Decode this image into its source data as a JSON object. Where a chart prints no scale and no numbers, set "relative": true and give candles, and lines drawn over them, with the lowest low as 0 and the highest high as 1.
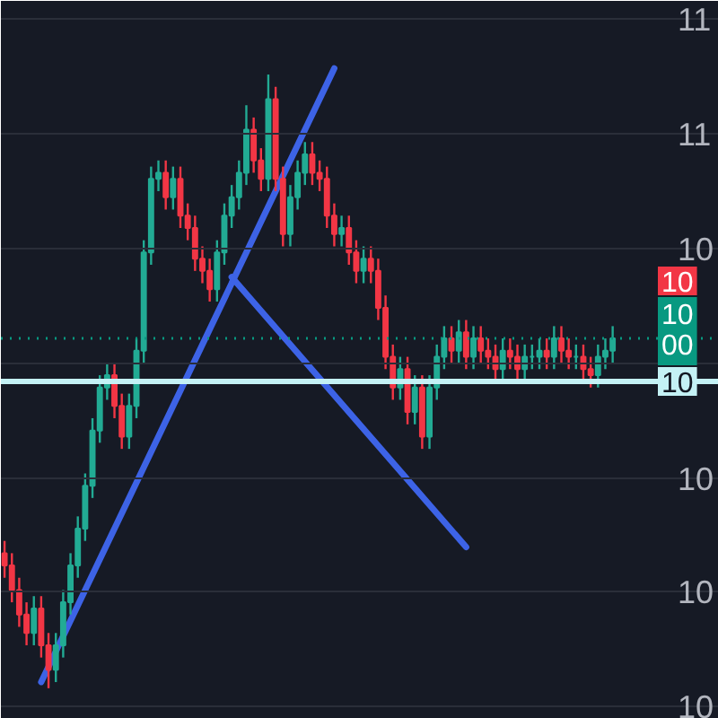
{
  "chart_data": {
    "type": "candlestick",
    "relative": true,
    "categories": [
      null,
      null,
      null,
      null,
      null,
      null,
      null,
      null,
      null,
      null,
      null,
      null,
      null,
      null,
      null,
      null,
      null,
      null,
      null,
      null,
      null,
      null,
      null,
      null,
      null,
      null,
      null,
      null,
      null,
      null,
      null,
      null,
      null,
      null,
      null,
      null,
      null,
      null,
      null,
      null,
      null,
      null,
      null,
      null,
      null,
      null,
      null,
      null,
      null,
      null,
      null,
      null,
      null,
      null,
      null,
      null,
      null,
      null,
      null,
      null,
      null,
      null,
      null,
      null,
      null,
      null,
      null,
      null,
      null,
      null,
      null,
      null,
      null,
      null,
      null,
      null,
      null,
      null,
      null,
      null,
      null,
      null,
      null,
      null
    ],
    "ohlc": [
      [
        0.22,
        0.24,
        0.18,
        0.2
      ],
      [
        0.2,
        0.22,
        0.14,
        0.16
      ],
      [
        0.16,
        0.18,
        0.1,
        0.12
      ],
      [
        0.12,
        0.14,
        0.07,
        0.09
      ],
      [
        0.09,
        0.15,
        0.07,
        0.13
      ],
      [
        0.13,
        0.15,
        0.05,
        0.07
      ],
      [
        0.07,
        0.09,
        0.0,
        0.03
      ],
      [
        0.03,
        0.09,
        0.01,
        0.07
      ],
      [
        0.07,
        0.16,
        0.05,
        0.14
      ],
      [
        0.14,
        0.22,
        0.12,
        0.2
      ],
      [
        0.2,
        0.28,
        0.18,
        0.26
      ],
      [
        0.26,
        0.35,
        0.24,
        0.33
      ],
      [
        0.33,
        0.44,
        0.31,
        0.42
      ],
      [
        0.42,
        0.51,
        0.4,
        0.49
      ],
      [
        0.49,
        0.53,
        0.47,
        0.51
      ],
      [
        0.51,
        0.53,
        0.44,
        0.46
      ],
      [
        0.46,
        0.48,
        0.39,
        0.41
      ],
      [
        0.41,
        0.48,
        0.39,
        0.46
      ],
      [
        0.46,
        0.57,
        0.44,
        0.55
      ],
      [
        0.55,
        0.73,
        0.53,
        0.71
      ],
      [
        0.71,
        0.85,
        0.69,
        0.83
      ],
      [
        0.83,
        0.86,
        0.81,
        0.84
      ],
      [
        0.84,
        0.86,
        0.78,
        0.8
      ],
      [
        0.8,
        0.85,
        0.78,
        0.83
      ],
      [
        0.83,
        0.85,
        0.75,
        0.77
      ],
      [
        0.77,
        0.79,
        0.73,
        0.75
      ],
      [
        0.75,
        0.77,
        0.68,
        0.7
      ],
      [
        0.7,
        0.72,
        0.66,
        0.68
      ],
      [
        0.68,
        0.7,
        0.63,
        0.65
      ],
      [
        0.65,
        0.73,
        0.63,
        0.71
      ],
      [
        0.71,
        0.79,
        0.69,
        0.77
      ],
      [
        0.77,
        0.82,
        0.75,
        0.8
      ],
      [
        0.8,
        0.86,
        0.78,
        0.84
      ],
      [
        0.84,
        0.95,
        0.82,
        0.91
      ],
      [
        0.91,
        0.93,
        0.84,
        0.86
      ],
      [
        0.86,
        0.88,
        0.81,
        0.83
      ],
      [
        0.83,
        1.0,
        0.81,
        0.96
      ],
      [
        0.96,
        0.98,
        0.81,
        0.83
      ],
      [
        0.83,
        0.85,
        0.72,
        0.74
      ],
      [
        0.74,
        0.82,
        0.72,
        0.8
      ],
      [
        0.8,
        0.86,
        0.78,
        0.84
      ],
      [
        0.84,
        0.89,
        0.82,
        0.87
      ],
      [
        0.87,
        0.89,
        0.82,
        0.84
      ],
      [
        0.84,
        0.86,
        0.81,
        0.83
      ],
      [
        0.83,
        0.85,
        0.75,
        0.77
      ],
      [
        0.77,
        0.79,
        0.72,
        0.74
      ],
      [
        0.74,
        0.77,
        0.72,
        0.75
      ],
      [
        0.75,
        0.77,
        0.69,
        0.71
      ],
      [
        0.71,
        0.73,
        0.66,
        0.68
      ],
      [
        0.68,
        0.72,
        0.66,
        0.7
      ],
      [
        0.7,
        0.72,
        0.66,
        0.68
      ],
      [
        0.68,
        0.7,
        0.6,
        0.62
      ],
      [
        0.62,
        0.64,
        0.52,
        0.54
      ],
      [
        0.54,
        0.56,
        0.47,
        0.49
      ],
      [
        0.49,
        0.54,
        0.47,
        0.52
      ],
      [
        0.52,
        0.54,
        0.43,
        0.45
      ],
      [
        0.45,
        0.51,
        0.43,
        0.49
      ],
      [
        0.49,
        0.51,
        0.39,
        0.41
      ],
      [
        0.41,
        0.51,
        0.39,
        0.49
      ],
      [
        0.49,
        0.56,
        0.47,
        0.54
      ],
      [
        0.54,
        0.59,
        0.52,
        0.57
      ],
      [
        0.57,
        0.59,
        0.53,
        0.55
      ],
      [
        0.55,
        0.6,
        0.53,
        0.58
      ],
      [
        0.58,
        0.6,
        0.52,
        0.54
      ],
      [
        0.54,
        0.59,
        0.52,
        0.57
      ],
      [
        0.57,
        0.59,
        0.53,
        0.55
      ],
      [
        0.55,
        0.57,
        0.52,
        0.54
      ],
      [
        0.54,
        0.56,
        0.5,
        0.52
      ],
      [
        0.52,
        0.57,
        0.5,
        0.55
      ],
      [
        0.55,
        0.57,
        0.52,
        0.54
      ],
      [
        0.54,
        0.56,
        0.5,
        0.52
      ],
      [
        0.52,
        0.56,
        0.5,
        0.54
      ],
      [
        0.54,
        0.56,
        0.52,
        0.54
      ],
      [
        0.54,
        0.57,
        0.52,
        0.55
      ],
      [
        0.55,
        0.57,
        0.52,
        0.54
      ],
      [
        0.54,
        0.59,
        0.52,
        0.57
      ],
      [
        0.57,
        0.59,
        0.53,
        0.55
      ],
      [
        0.55,
        0.57,
        0.52,
        0.54
      ],
      [
        0.54,
        0.56,
        0.52,
        0.54
      ],
      [
        0.54,
        0.56,
        0.5,
        0.52
      ],
      [
        0.52,
        0.54,
        0.49,
        0.51
      ],
      [
        0.51,
        0.56,
        0.49,
        0.54
      ],
      [
        0.54,
        0.57,
        0.52,
        0.55
      ],
      [
        0.55,
        0.59,
        0.53,
        0.57
      ]
    ],
    "colors": [
      "#f23645",
      "#f23645",
      "#f23645",
      "#f23645",
      "#22ab94",
      "#f23645",
      "#f23645",
      "#22ab94",
      "#22ab94",
      "#22ab94",
      "#22ab94",
      "#22ab94",
      "#22ab94",
      "#22ab94",
      "#22ab94",
      "#f23645",
      "#f23645",
      "#22ab94",
      "#22ab94",
      "#22ab94",
      "#22ab94",
      "#22ab94",
      "#f23645",
      "#22ab94",
      "#f23645",
      "#f23645",
      "#f23645",
      "#f23645",
      "#f23645",
      "#22ab94",
      "#22ab94",
      "#22ab94",
      "#22ab94",
      "#22ab94",
      "#f23645",
      "#f23645",
      "#22ab94",
      "#f23645",
      "#f23645",
      "#22ab94",
      "#22ab94",
      "#22ab94",
      "#f23645",
      "#f23645",
      "#f23645",
      "#f23645",
      "#22ab94",
      "#f23645",
      "#f23645",
      "#22ab94",
      "#f23645",
      "#f23645",
      "#f23645",
      "#f23645",
      "#22ab94",
      "#f23645",
      "#22ab94",
      "#f23645",
      "#22ab94",
      "#22ab94",
      "#22ab94",
      "#f23645",
      "#22ab94",
      "#f23645",
      "#22ab94",
      "#f23645",
      "#f23645",
      "#f23645",
      "#22ab94",
      "#f23645",
      "#f23645",
      "#22ab94",
      "#22ab94",
      "#22ab94",
      "#f23645",
      "#22ab94",
      "#f23645",
      "#f23645",
      "#22ab94",
      "#f23645",
      "#f23645",
      "#22ab94",
      "#22ab94",
      "#22ab94"
    ],
    "series": [
      {
        "type": "line",
        "color": "#3d63e6",
        "values": [
          null,
          null,
          null,
          null,
          null,
          0.01,
          null,
          null,
          null,
          null,
          null,
          null,
          null,
          null,
          null,
          null,
          null,
          null,
          null,
          null,
          null,
          null,
          null,
          null,
          null,
          null,
          null,
          null,
          null,
          null,
          null,
          null,
          null,
          null,
          null,
          null,
          null,
          null,
          null,
          null,
          null,
          null,
          null,
          null,
          null,
          1.01,
          null,
          null,
          null,
          null,
          null,
          null,
          null,
          null,
          null,
          null,
          null,
          null,
          null,
          null,
          null,
          null,
          null,
          null,
          null,
          null,
          null,
          null,
          null,
          null,
          null,
          null,
          null,
          null,
          null,
          null,
          null,
          null,
          null,
          null,
          null,
          null,
          null,
          null
        ]
      },
      {
        "type": "line",
        "color": "#3d63e6",
        "values": [
          null,
          null,
          null,
          null,
          null,
          null,
          null,
          null,
          null,
          null,
          null,
          null,
          null,
          null,
          null,
          null,
          null,
          null,
          null,
          null,
          null,
          null,
          null,
          null,
          null,
          null,
          null,
          null,
          null,
          null,
          null,
          0.67,
          null,
          null,
          null,
          null,
          null,
          null,
          null,
          null,
          null,
          null,
          null,
          null,
          null,
          null,
          null,
          null,
          null,
          null,
          null,
          null,
          null,
          null,
          null,
          null,
          null,
          null,
          null,
          null,
          null,
          null,
          null,
          0.23,
          null,
          null,
          null,
          null,
          null,
          null,
          null,
          null,
          null,
          null,
          null,
          null,
          null,
          null,
          null,
          null,
          null,
          null,
          null,
          null
        ]
      }
    ],
    "ylim": [
      -0.05,
      1.12
    ],
    "grid": "y",
    "annotations": [
      "11",
      "11",
      "10",
      "10",
      "10",
      "10",
      "10",
      "10\n00",
      "10"
    ],
    "ref_lines": [
      {
        "axis": "y",
        "value": 0.57,
        "color": "#089981",
        "line_style": "dotted"
      },
      {
        "axis": "y",
        "value": 0.5,
        "color": "#c4f1f5",
        "line_style": "solid"
      }
    ]
  }
}
